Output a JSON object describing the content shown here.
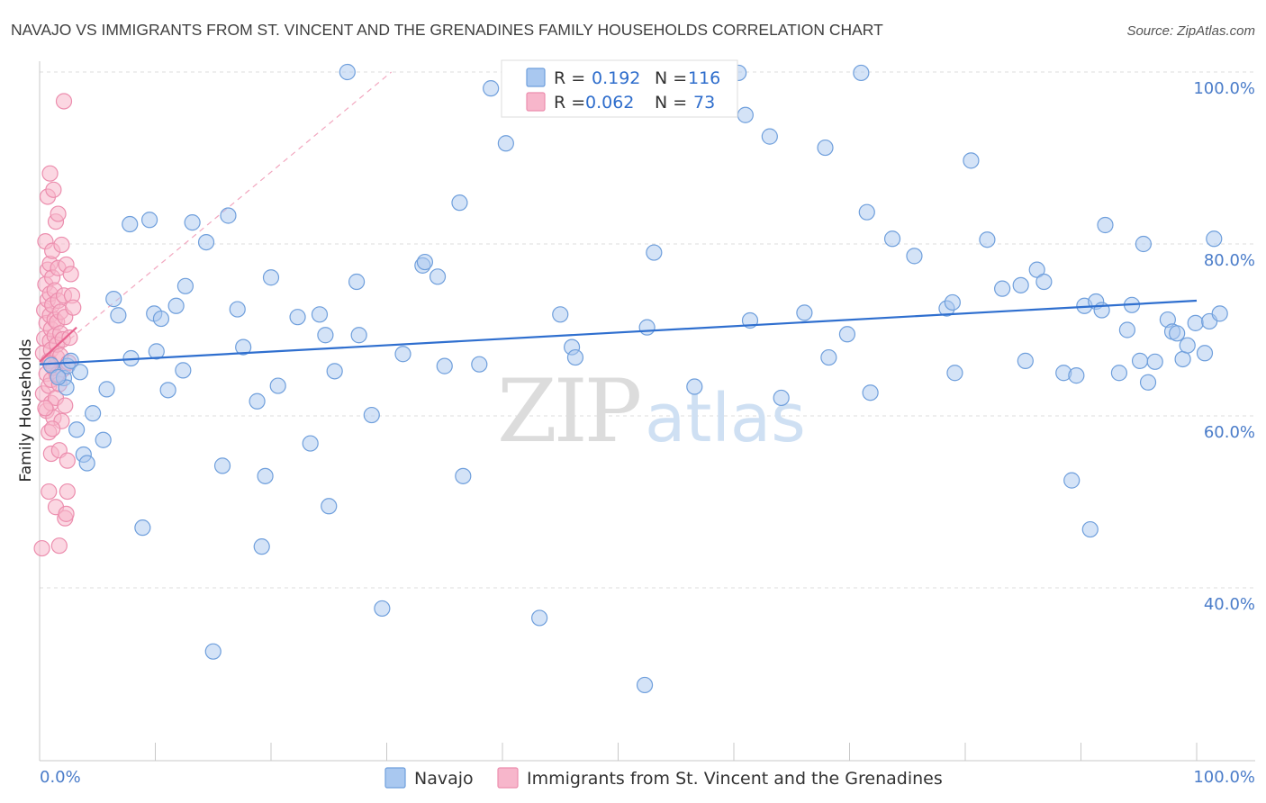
{
  "title": "NAVAJO VS IMMIGRANTS FROM ST. VINCENT AND THE GRENADINES FAMILY HOUSEHOLDS CORRELATION CHART",
  "source": "Source: ZipAtlas.com",
  "watermark": {
    "zip": "ZIP",
    "atlas": "atlas"
  },
  "legend": {
    "rows": [
      {
        "r_label": "R =",
        "r_value": "0.192",
        "n_label": "N =",
        "n_value": "116"
      },
      {
        "r_label": "R =",
        "r_value": "0.062",
        "n_label": "N =",
        "n_value": "73"
      }
    ]
  },
  "bottom_legend": [
    "Navajo",
    "Immigrants from St. Vincent and the Grenadines"
  ],
  "chart_data": {
    "type": "scatter",
    "title": "NAVAJO VS IMMIGRANTS FROM ST. VINCENT AND THE GRENADINES FAMILY HOUSEHOLDS CORRELATION CHART",
    "xlabel": "",
    "ylabel": "Family Households",
    "xlim": [
      0,
      100
    ],
    "ylim": [
      20,
      102
    ],
    "x_tick_labels": [
      "0.0%",
      "100.0%"
    ],
    "y_ticks": [
      40,
      60,
      80,
      100
    ],
    "y_tick_labels": [
      "40.0%",
      "60.0%",
      "80.0%",
      "100.0%"
    ],
    "grid": true,
    "colors": {
      "navajo_fill": "#a9c8f0",
      "navajo_stroke": "#6f9fdc",
      "navajo_line": "#2f6fcf",
      "svg_fill": "#f7b6cb",
      "svg_stroke": "#ec8eae",
      "svg_line": "#e8638f"
    },
    "series": [
      {
        "name": "Navajo",
        "R": 0.192,
        "N": 116,
        "trend": {
          "x": [
            0,
            100
          ],
          "y": [
            66.0,
            73.4
          ]
        },
        "points": [
          [
            2.1,
            64.4
          ],
          [
            2.4,
            65.8
          ],
          [
            2.3,
            63.3
          ],
          [
            3.2,
            58.4
          ],
          [
            3.8,
            55.5
          ],
          [
            4.1,
            54.5
          ],
          [
            4.6,
            60.3
          ],
          [
            5.5,
            57.2
          ],
          [
            5.8,
            63.1
          ],
          [
            6.4,
            73.6
          ],
          [
            6.8,
            71.7
          ],
          [
            7.8,
            82.3
          ],
          [
            7.9,
            66.7
          ],
          [
            8.9,
            47.0
          ],
          [
            9.5,
            82.8
          ],
          [
            9.9,
            71.9
          ],
          [
            10.1,
            67.5
          ],
          [
            10.5,
            71.3
          ],
          [
            11.1,
            63.0
          ],
          [
            11.8,
            72.8
          ],
          [
            12.4,
            65.3
          ],
          [
            12.6,
            75.1
          ],
          [
            13.2,
            82.5
          ],
          [
            14.4,
            80.2
          ],
          [
            15.0,
            32.6
          ],
          [
            15.8,
            54.2
          ],
          [
            16.3,
            83.3
          ],
          [
            17.1,
            72.4
          ],
          [
            17.6,
            68.0
          ],
          [
            18.8,
            61.7
          ],
          [
            19.2,
            44.8
          ],
          [
            19.5,
            53.0
          ],
          [
            20.0,
            76.1
          ],
          [
            20.6,
            63.5
          ],
          [
            22.3,
            71.5
          ],
          [
            23.4,
            56.8
          ],
          [
            24.2,
            71.8
          ],
          [
            24.7,
            69.4
          ],
          [
            25.0,
            49.5
          ],
          [
            25.5,
            65.2
          ],
          [
            26.6,
            100.0
          ],
          [
            27.4,
            75.6
          ],
          [
            27.6,
            69.4
          ],
          [
            28.7,
            60.1
          ],
          [
            29.6,
            37.6
          ],
          [
            31.4,
            67.2
          ],
          [
            33.1,
            77.5
          ],
          [
            33.3,
            77.9
          ],
          [
            34.4,
            76.2
          ],
          [
            35.0,
            65.8
          ],
          [
            36.3,
            84.8
          ],
          [
            36.6,
            53.0
          ],
          [
            38.0,
            66.0
          ],
          [
            39.0,
            98.1
          ],
          [
            40.3,
            91.7
          ],
          [
            43.2,
            36.5
          ],
          [
            45.0,
            71.8
          ],
          [
            46.0,
            68.0
          ],
          [
            46.3,
            66.8
          ],
          [
            52.3,
            28.7
          ],
          [
            52.5,
            70.3
          ],
          [
            53.1,
            79.0
          ],
          [
            56.6,
            63.4
          ],
          [
            60.4,
            99.9
          ],
          [
            61.0,
            95.0
          ],
          [
            61.4,
            71.1
          ],
          [
            63.1,
            92.5
          ],
          [
            64.1,
            62.1
          ],
          [
            66.1,
            72.0
          ],
          [
            67.9,
            91.2
          ],
          [
            68.2,
            66.8
          ],
          [
            69.8,
            69.5
          ],
          [
            71.0,
            99.9
          ],
          [
            71.5,
            83.7
          ],
          [
            71.8,
            62.7
          ],
          [
            73.7,
            80.6
          ],
          [
            75.6,
            78.6
          ],
          [
            78.4,
            72.5
          ],
          [
            78.9,
            73.2
          ],
          [
            79.1,
            65.0
          ],
          [
            80.5,
            89.7
          ],
          [
            81.9,
            80.5
          ],
          [
            83.2,
            74.8
          ],
          [
            84.8,
            75.2
          ],
          [
            85.2,
            66.4
          ],
          [
            86.2,
            77.0
          ],
          [
            86.8,
            75.6
          ],
          [
            88.5,
            65.0
          ],
          [
            89.2,
            52.5
          ],
          [
            89.6,
            64.7
          ],
          [
            90.3,
            72.8
          ],
          [
            90.8,
            46.8
          ],
          [
            91.3,
            73.3
          ],
          [
            91.8,
            72.3
          ],
          [
            92.1,
            82.2
          ],
          [
            93.3,
            65.0
          ],
          [
            94.0,
            70.0
          ],
          [
            94.4,
            72.9
          ],
          [
            95.1,
            66.4
          ],
          [
            95.4,
            80.0
          ],
          [
            95.8,
            63.9
          ],
          [
            96.4,
            66.3
          ],
          [
            97.5,
            71.2
          ],
          [
            97.9,
            69.8
          ],
          [
            98.3,
            69.6
          ],
          [
            98.8,
            66.6
          ],
          [
            99.2,
            68.2
          ],
          [
            99.9,
            70.8
          ],
          [
            100.7,
            67.3
          ],
          [
            101.1,
            71.0
          ],
          [
            101.5,
            80.6
          ],
          [
            102.0,
            71.9
          ],
          [
            1.0,
            65.9
          ],
          [
            1.6,
            64.5
          ],
          [
            2.7,
            66.4
          ],
          [
            3.5,
            65.1
          ]
        ]
      },
      {
        "name": "Immigrants from St. Vincent and the Grenadines",
        "R": 0.062,
        "N": 73,
        "trend": {
          "x": [
            0,
            3.2
          ],
          "y": [
            66.3,
            70.3
          ]
        },
        "points": [
          [
            0.2,
            44.6
          ],
          [
            0.3,
            62.6
          ],
          [
            0.3,
            67.3
          ],
          [
            0.4,
            69.0
          ],
          [
            0.4,
            72.3
          ],
          [
            0.5,
            75.3
          ],
          [
            0.5,
            80.3
          ],
          [
            0.6,
            60.6
          ],
          [
            0.6,
            64.9
          ],
          [
            0.6,
            70.8
          ],
          [
            0.7,
            73.5
          ],
          [
            0.7,
            77.0
          ],
          [
            0.7,
            85.5
          ],
          [
            0.8,
            51.2
          ],
          [
            0.8,
            58.1
          ],
          [
            0.8,
            63.5
          ],
          [
            0.8,
            66.4
          ],
          [
            0.9,
            68.7
          ],
          [
            0.9,
            71.7
          ],
          [
            0.9,
            74.2
          ],
          [
            0.9,
            77.7
          ],
          [
            0.9,
            88.2
          ],
          [
            1.0,
            55.6
          ],
          [
            1.0,
            61.5
          ],
          [
            1.0,
            64.2
          ],
          [
            1.0,
            67.7
          ],
          [
            1.0,
            70.1
          ],
          [
            1.1,
            72.9
          ],
          [
            1.1,
            76.1
          ],
          [
            1.1,
            79.2
          ],
          [
            1.2,
            86.3
          ],
          [
            1.2,
            59.8
          ],
          [
            1.2,
            65.6
          ],
          [
            1.3,
            69.3
          ],
          [
            1.3,
            71.2
          ],
          [
            1.3,
            74.6
          ],
          [
            1.4,
            82.6
          ],
          [
            1.4,
            49.4
          ],
          [
            1.4,
            62.1
          ],
          [
            1.5,
            66.8
          ],
          [
            1.5,
            68.3
          ],
          [
            1.5,
            70.9
          ],
          [
            1.6,
            73.4
          ],
          [
            1.6,
            77.2
          ],
          [
            1.6,
            83.5
          ],
          [
            1.7,
            44.9
          ],
          [
            1.7,
            56.0
          ],
          [
            1.7,
            63.7
          ],
          [
            1.8,
            67.0
          ],
          [
            1.8,
            69.6
          ],
          [
            1.8,
            72.1
          ],
          [
            1.9,
            79.9
          ],
          [
            1.9,
            59.4
          ],
          [
            2.0,
            65.4
          ],
          [
            2.0,
            68.9
          ],
          [
            2.1,
            74.0
          ],
          [
            2.1,
            96.6
          ],
          [
            2.2,
            48.1
          ],
          [
            2.2,
            61.2
          ],
          [
            2.2,
            71.5
          ],
          [
            2.3,
            77.6
          ],
          [
            2.4,
            51.2
          ],
          [
            2.4,
            54.8
          ],
          [
            2.5,
            66.2
          ],
          [
            2.6,
            69.1
          ],
          [
            2.7,
            76.5
          ],
          [
            2.8,
            74.0
          ],
          [
            2.9,
            72.6
          ],
          [
            2.3,
            48.6
          ],
          [
            1.1,
            58.5
          ],
          [
            0.5,
            60.9
          ],
          [
            1.5,
            64.8
          ],
          [
            0.9,
            66.1
          ]
        ]
      }
    ],
    "reference_line": {
      "x": [
        0,
        30.4
      ],
      "y": [
        66.0,
        100.0
      ],
      "style": "dashed"
    }
  }
}
